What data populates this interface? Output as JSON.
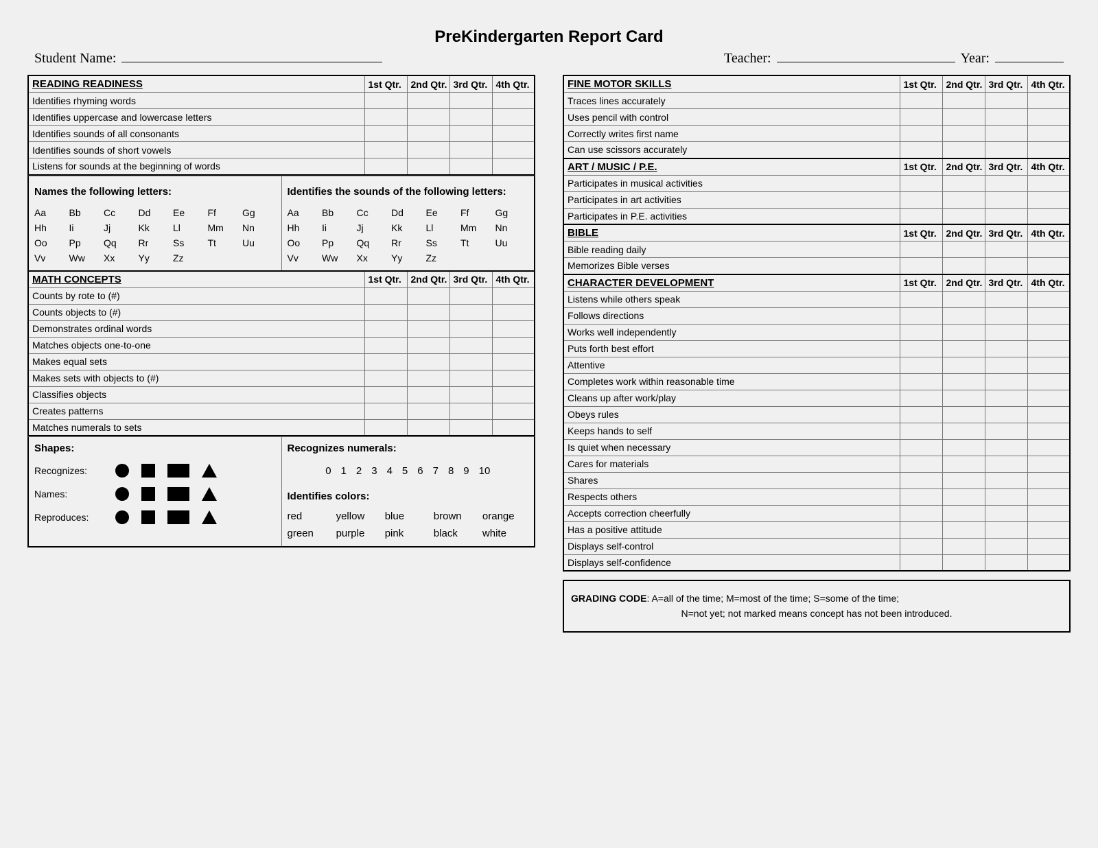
{
  "title": "PreKindergarten Report Card",
  "header": {
    "student_label": "Student Name:",
    "teacher_label": "Teacher:",
    "year_label": "Year:"
  },
  "qtr_labels": [
    "1st Qtr.",
    "2nd Qtr.",
    "3rd Qtr.",
    "4th Qtr."
  ],
  "left": {
    "reading": {
      "title": "READING READINESS",
      "rows": [
        "Identifies rhyming words",
        "Identifies uppercase and lowercase letters",
        "Identifies sounds of all consonants",
        "Identifies sounds of short vowels",
        "Listens for sounds at the beginning of words"
      ]
    },
    "letters": {
      "names_title": "Names the following letters:",
      "sounds_title": "Identifies the sounds of the following letters:",
      "pairs": [
        "Aa",
        "Bb",
        "Cc",
        "Dd",
        "Ee",
        "Ff",
        "Gg",
        "Hh",
        "Ii",
        "Jj",
        "Kk",
        "Ll",
        "Mm",
        "Nn",
        "Oo",
        "Pp",
        "Qq",
        "Rr",
        "Ss",
        "Tt",
        "Uu",
        "Vv",
        "Ww",
        "Xx",
        "Yy",
        "Zz"
      ]
    },
    "math": {
      "title": "MATH CONCEPTS",
      "rows": [
        "Counts by rote to (#)",
        "Counts objects to (#)",
        "Demonstrates ordinal words",
        "Matches objects one-to-one",
        "Makes equal sets",
        "Makes sets with objects to (#)",
        "Classifies objects",
        "Creates patterns",
        "Matches numerals to sets"
      ]
    },
    "shapes": {
      "title": "Shapes:",
      "recognizes": "Recognizes:",
      "names": "Names:",
      "reproduces": "Reproduces:",
      "numerals_title": "Recognizes numerals:",
      "numerals": [
        "0",
        "1",
        "2",
        "3",
        "4",
        "5",
        "6",
        "7",
        "8",
        "9",
        "10"
      ],
      "colors_title": "Identifies colors:",
      "colors": [
        "red",
        "yellow",
        "blue",
        "brown",
        "orange",
        "green",
        "purple",
        "pink",
        "black",
        "white"
      ]
    }
  },
  "right": {
    "fine_motor": {
      "title": "FINE MOTOR SKILLS",
      "rows": [
        "Traces lines accurately",
        "Uses pencil with control",
        "Correctly writes first name",
        "Can use scissors accurately"
      ]
    },
    "art": {
      "title": "ART / MUSIC / P.E.",
      "rows": [
        "Participates in musical activities",
        "Participates in art activities",
        "Participates in P.E. activities"
      ]
    },
    "bible": {
      "title": "BIBLE",
      "rows": [
        "Bible reading daily",
        "Memorizes Bible verses"
      ]
    },
    "character": {
      "title": "CHARACTER DEVELOPMENT",
      "rows": [
        "Listens while others speak",
        "Follows directions",
        "Works well independently",
        "Puts forth best effort",
        "Attentive",
        "Completes work within reasonable time",
        "Cleans up after work/play",
        "Obeys rules",
        "Keeps hands to self",
        "Is quiet when necessary",
        "Cares for materials",
        "Shares",
        "Respects others",
        "Accepts correction cheerfully",
        "Has a positive attitude",
        "Displays self-control",
        "Displays self-confidence"
      ]
    },
    "grading": {
      "label": "GRADING CODE",
      "line1": ": A=all of the time; M=most of the time; S=some of the time;",
      "line2": "N=not yet; not marked means concept has not been introduced."
    }
  }
}
